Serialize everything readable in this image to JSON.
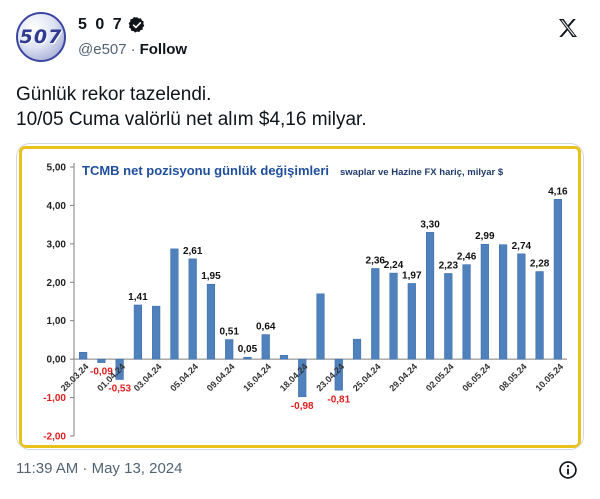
{
  "author": {
    "display_name": "5 0 7",
    "handle": "@e507",
    "separator": "·",
    "follow_label": "Follow",
    "avatar_text": "507",
    "verified": true
  },
  "tweet": {
    "line1": "Günlük rekor tazelendi.",
    "line2": "10/05 Cuma valörlü net alım $4,16 milyar.",
    "timestamp": "11:39 AM · May 13, 2024"
  },
  "icons": {
    "logo": "x-logo-icon",
    "verified": "verified-badge-icon",
    "info": "info-icon"
  },
  "colors": {
    "bar": "#4f81bd",
    "negative_label": "#e11d1d",
    "frame": "#e8c21a",
    "title": "#1f4e9c"
  },
  "chart_data": {
    "type": "bar",
    "title": "TCMB net pozisyonu günlük değişimleri",
    "subtitle": "swaplar ve Hazine FX hariç, milyar $",
    "ylim": [
      -2,
      5
    ],
    "yticks": [
      "5,00",
      "4,00",
      "3,00",
      "2,00",
      "1,00",
      "0,00",
      "-1,00",
      "-2,00"
    ],
    "ytick_values": [
      5,
      4,
      3,
      2,
      1,
      0,
      -1,
      -2
    ],
    "grid": false,
    "values": [
      0.18,
      -0.09,
      -0.53,
      1.41,
      1.38,
      2.87,
      2.61,
      1.95,
      0.51,
      0.05,
      0.64,
      0.1,
      -0.98,
      1.7,
      -0.81,
      0.52,
      2.36,
      2.24,
      1.97,
      3.3,
      2.23,
      2.46,
      2.99,
      2.98,
      2.74,
      2.28,
      4.16
    ],
    "labels": [
      "",
      "-0,09",
      "-0,53",
      "1,41",
      "",
      "",
      "2,61",
      "1,95",
      "0,51",
      "0,05",
      "0,64",
      "",
      "-0,98",
      "",
      "-0,81",
      "",
      "2,36",
      "2,24",
      "1,97",
      "3,30",
      "2,23",
      "2,46",
      "2,99",
      "",
      "2,74",
      "2,28",
      "4,16"
    ],
    "x_tick_labels": [
      "28.03.24",
      "01.04.24",
      "03.04.24",
      "05.04.24",
      "09.04.24",
      "16.04.24",
      "18.04.24",
      "23.04.24",
      "25.04.24",
      "29.04.24",
      "02.05.24",
      "06.05.24",
      "08.05.24",
      "10.05.24"
    ],
    "x_tick_positions": [
      0,
      2,
      4,
      6,
      8,
      10,
      12,
      14,
      16,
      18,
      20,
      22,
      24,
      26
    ]
  }
}
